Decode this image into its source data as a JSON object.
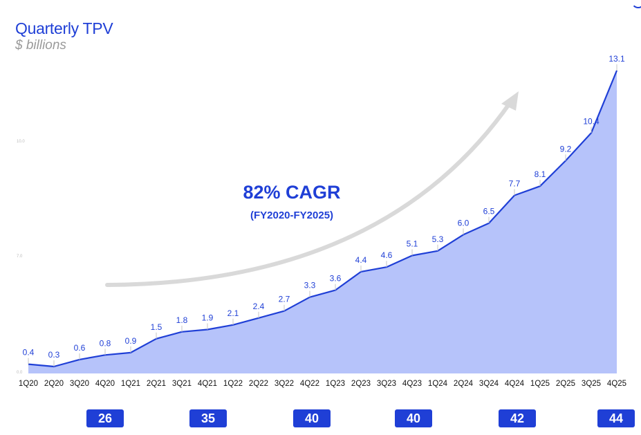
{
  "chart_data": {
    "type": "area",
    "title": "Quarterly TPV",
    "subtitle": "$ billions",
    "categories": [
      "1Q20",
      "2Q20",
      "3Q20",
      "4Q20",
      "1Q21",
      "2Q21",
      "3Q21",
      "4Q21",
      "1Q22",
      "2Q22",
      "3Q22",
      "4Q22",
      "1Q23",
      "2Q23",
      "3Q23",
      "4Q23",
      "1Q24",
      "2Q24",
      "3Q24",
      "4Q24",
      "1Q25",
      "2Q25",
      "3Q25",
      "4Q25"
    ],
    "values": [
      0.4,
      0.3,
      0.6,
      0.8,
      0.9,
      1.5,
      1.8,
      1.9,
      2.1,
      2.4,
      2.7,
      3.3,
      3.6,
      4.4,
      4.6,
      5.1,
      5.3,
      6.0,
      6.5,
      7.7,
      8.1,
      9.2,
      10.4,
      13.1
    ],
    "value_labels": [
      "0.4",
      "0.3",
      "0.6",
      "0.8",
      "0.9",
      "1.5",
      "1.8",
      "1.9",
      "2.1",
      "2.4",
      "2.7",
      "3.3",
      "3.6",
      "4.4",
      "4.6",
      "5.1",
      "5.3",
      "6.0",
      "6.5",
      "7.7",
      "8.1",
      "9.2",
      "10.4",
      "13.1"
    ],
    "y_ticks": [
      "0.0",
      "7.0",
      "10.0"
    ],
    "ylim": [
      0,
      13.1
    ],
    "annotation": {
      "headline": "82% CAGR",
      "period": "(FY2020-FY2025)"
    },
    "badges": [
      "26",
      "35",
      "40",
      "40",
      "42",
      "44"
    ],
    "colors": {
      "line": "#1f3fd6",
      "fill": "#b6c3fa",
      "accent": "#1f3fd6",
      "arrow": "#d9d9d9"
    }
  }
}
